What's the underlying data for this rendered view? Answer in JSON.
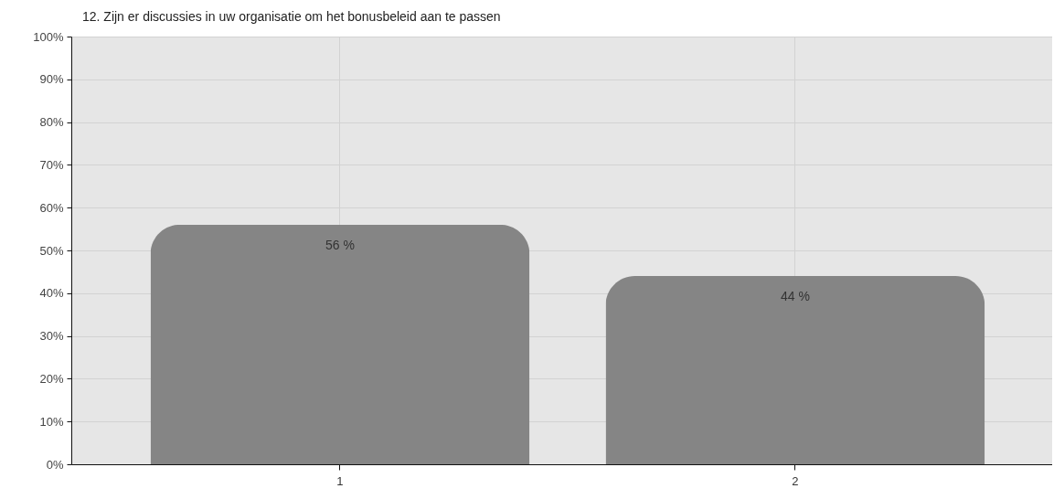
{
  "chart_data": {
    "type": "bar",
    "title": "12. Zijn er discussies in uw organisatie om het bonusbeleid aan te passen",
    "categories": [
      "1",
      "2"
    ],
    "values": [
      56,
      44
    ],
    "color": "#858585",
    "value_labels": [
      "56 %",
      "44 %"
    ],
    "ylim": [
      0,
      100
    ],
    "yticks": [
      {
        "value": 0,
        "label": "0%"
      },
      {
        "value": 10,
        "label": "10%"
      },
      {
        "value": 20,
        "label": "20%"
      },
      {
        "value": 30,
        "label": "30%"
      },
      {
        "value": 40,
        "label": "40%"
      },
      {
        "value": 50,
        "label": "50%"
      },
      {
        "value": 60,
        "label": "60%"
      },
      {
        "value": 70,
        "label": "70%"
      },
      {
        "value": 80,
        "label": "80%"
      },
      {
        "value": 90,
        "label": "90%"
      },
      {
        "value": 100,
        "label": "100%"
      }
    ],
    "grid": true
  }
}
